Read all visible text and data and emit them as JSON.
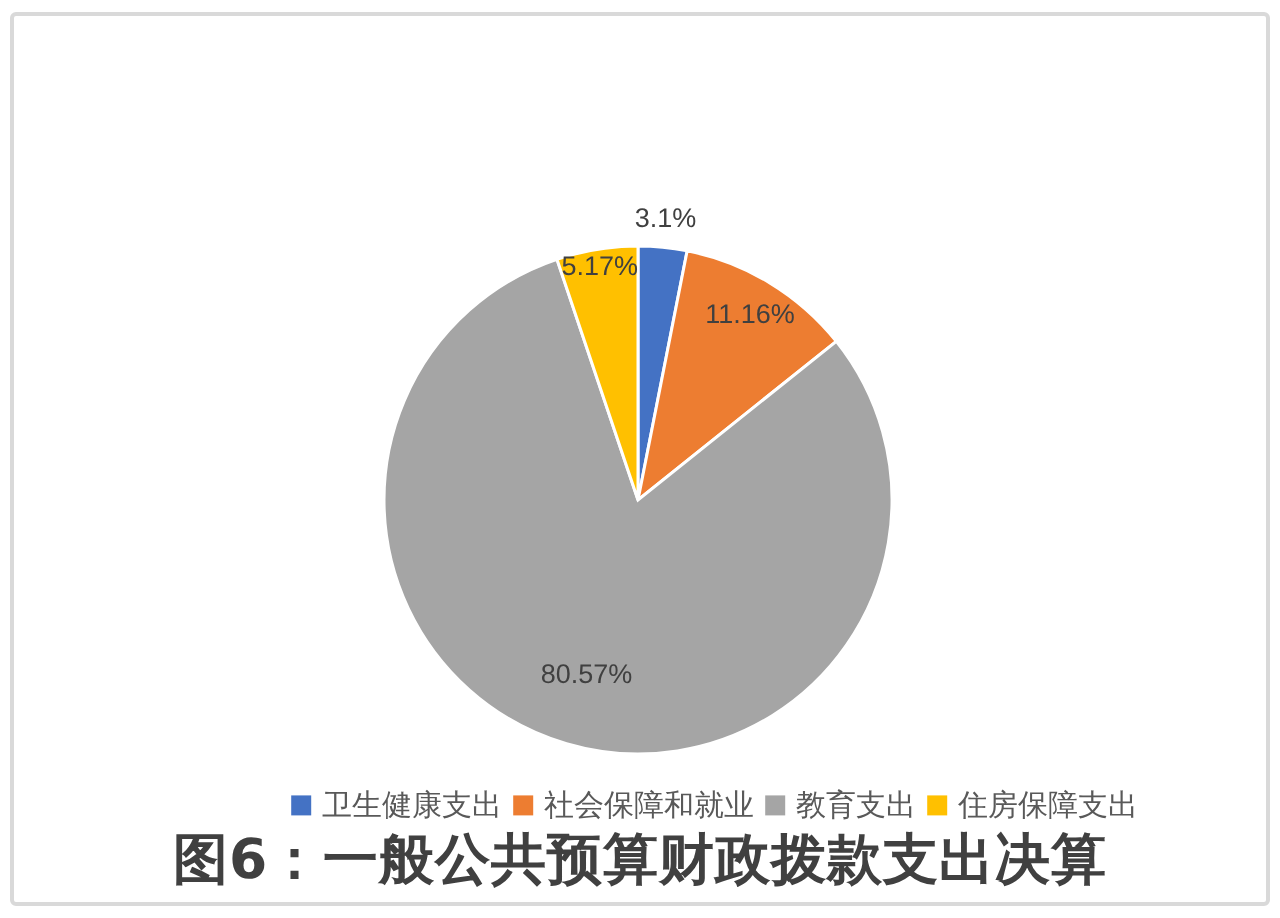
{
  "chart_data": {
    "type": "pie",
    "title": "图6：一般公共预算财政拨款支出决算",
    "categories": [
      "卫生健康支出",
      "社会保障和就业",
      "教育支出",
      "住房保障支出"
    ],
    "values": [
      3.1,
      11.16,
      80.57,
      5.17
    ],
    "colors": [
      "#4472c4",
      "#ed7d31",
      "#a5a5a5",
      "#ffc000"
    ],
    "value_labels": [
      "3.1%",
      "11.16%",
      "80.57%",
      "5.17%"
    ],
    "legend": "bottom"
  }
}
